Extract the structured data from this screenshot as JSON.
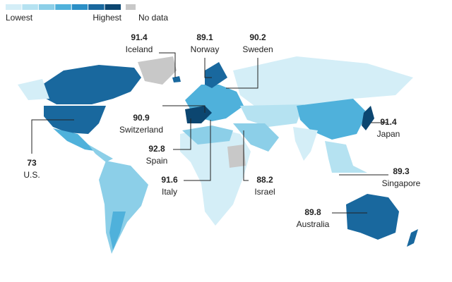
{
  "legend": {
    "low_label": "Lowest",
    "high_label": "Highest",
    "no_data_label": "No data",
    "colors": [
      "#d4eef7",
      "#b5e2f1",
      "#8ccfe8",
      "#4fb1db",
      "#2b8fc6",
      "#19689e",
      "#0c4670"
    ],
    "no_data_color": "#c8c8c8"
  },
  "callouts": [
    {
      "name": "Iceland",
      "value": 91.4
    },
    {
      "name": "Norway",
      "value": 89.1
    },
    {
      "name": "Sweden",
      "value": 90.2
    },
    {
      "name": "Switzerland",
      "value": 90.9
    },
    {
      "name": "Spain",
      "value": 92.8
    },
    {
      "name": "Italy",
      "value": 91.6
    },
    {
      "name": "Israel",
      "value": 88.2
    },
    {
      "name": "Japan",
      "value": 91.4
    },
    {
      "name": "Singapore",
      "value": 89.3
    },
    {
      "name": "Australia",
      "value": 89.8
    },
    {
      "name": "U.S.",
      "value": 73
    }
  ]
}
